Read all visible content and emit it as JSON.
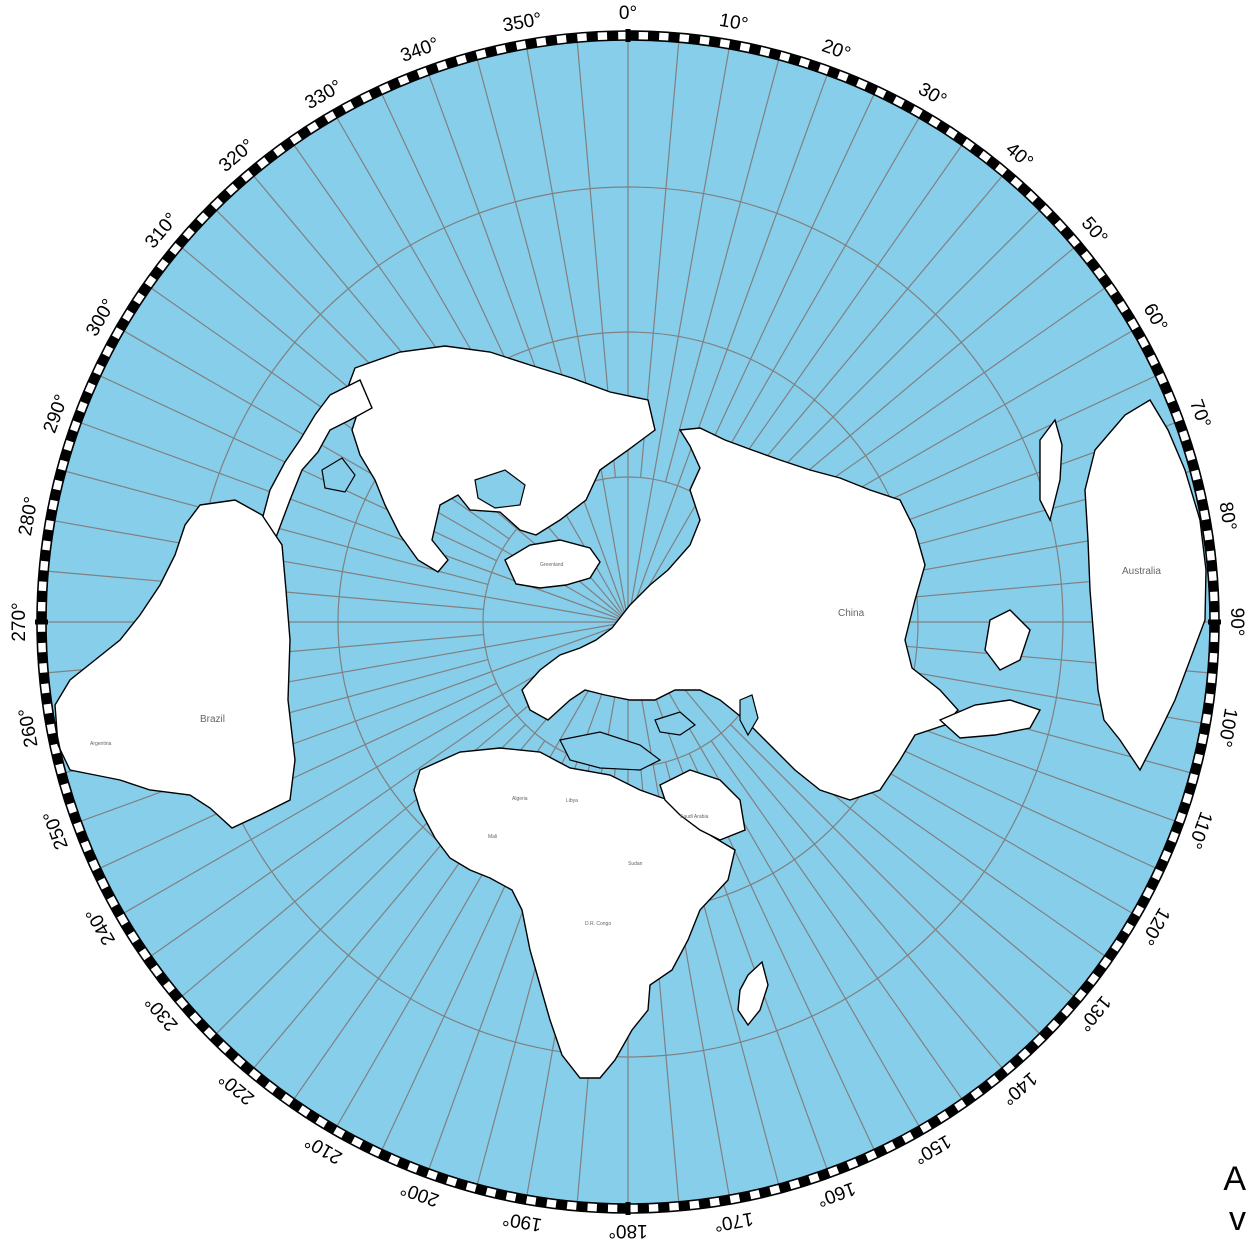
{
  "map": {
    "projection": "north-polar azimuthal equidistant",
    "ocean_color": "#87CEEB",
    "land_color": "#ffffff",
    "grid_color": "#808080",
    "degree_labels": [
      "0°",
      "10°",
      "20°",
      "30°",
      "40°",
      "50°",
      "60°",
      "70°",
      "80°",
      "90°",
      "100°",
      "110°",
      "120°",
      "130°",
      "140°",
      "150°",
      "160°",
      "170°",
      "180°",
      "190°",
      "200°",
      "210°",
      "220°",
      "230°",
      "240°",
      "250°",
      "260°",
      "270°",
      "280°",
      "290°",
      "300°",
      "310°",
      "320°",
      "330°",
      "340°",
      "350°"
    ],
    "country_labels": {
      "greenland": "Greenland",
      "china": "China",
      "australia": "Australia",
      "brazil": "Brazil",
      "argentina": "Argentina",
      "algeria": "Algeria",
      "libya": "Libya",
      "saudi_arabia": "Saudi Arabia",
      "mali": "Mali",
      "sudan": "Sudan",
      "dr_congo": "D.R. Congo"
    }
  },
  "edge_text": {
    "line1": "A",
    "line2": "v"
  }
}
